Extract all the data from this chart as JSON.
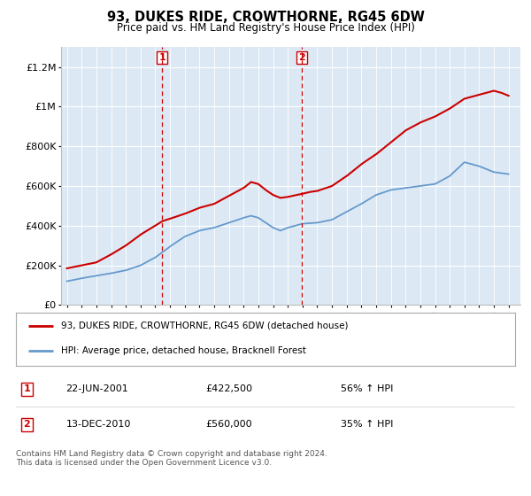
{
  "title": "93, DUKES RIDE, CROWTHORNE, RG45 6DW",
  "subtitle": "Price paid vs. HM Land Registry's House Price Index (HPI)",
  "background_color": "#dce9f5",
  "plot_bg_color": "#dce9f5",
  "red_line_label": "93, DUKES RIDE, CROWTHORNE, RG45 6DW (detached house)",
  "blue_line_label": "HPI: Average price, detached house, Bracknell Forest",
  "annotation1": {
    "num": "1",
    "date": "22-JUN-2001",
    "price": "£422,500",
    "pct": "56% ↑ HPI"
  },
  "annotation2": {
    "num": "2",
    "date": "13-DEC-2010",
    "price": "£560,000",
    "pct": "35% ↑ HPI"
  },
  "footer": "Contains HM Land Registry data © Crown copyright and database right 2024.\nThis data is licensed under the Open Government Licence v3.0.",
  "vline1_x": 2001.47,
  "vline2_x": 2010.95,
  "ylim": [
    0,
    1300000
  ],
  "yticks": [
    0,
    200000,
    400000,
    600000,
    800000,
    1000000,
    1200000
  ],
  "ytick_labels": [
    "£0",
    "£200K",
    "£400K",
    "£600K",
    "£800K",
    "£1M",
    "£1.2M"
  ],
  "red_color": "#cc0000",
  "blue_color": "#6699cc",
  "vline_color": "#cc0000",
  "xlim": [
    1994.6,
    2025.8
  ]
}
